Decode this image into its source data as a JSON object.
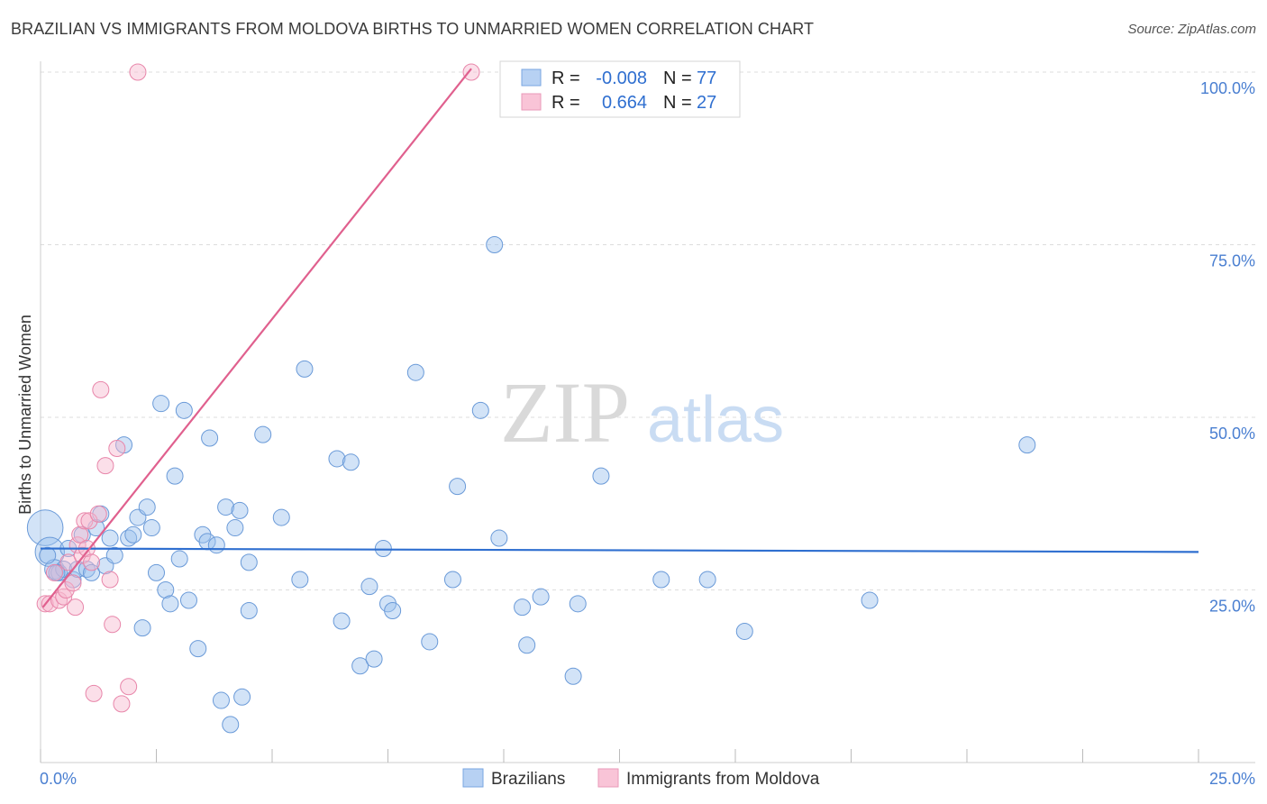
{
  "title": "BRAZILIAN VS IMMIGRANTS FROM MOLDOVA BIRTHS TO UNMARRIED WOMEN CORRELATION CHART",
  "source": "Source: ZipAtlas.com",
  "watermark": {
    "zip": "ZIP",
    "atlas": "atlas"
  },
  "chart_data": {
    "type": "scatter",
    "ylabel": "Births to Unmarried Women",
    "xlim": [
      0,
      25
    ],
    "ylim": [
      0,
      100
    ],
    "x_tick_labels": {
      "left": "0.0%",
      "right": "25.0%"
    },
    "y_ticks": [
      {
        "value": 100,
        "label": "100.0%"
      },
      {
        "value": 75,
        "label": "75.0%"
      },
      {
        "value": 50,
        "label": "50.0%"
      },
      {
        "value": 25,
        "label": "25.0%"
      }
    ],
    "legend": {
      "rows": [
        {
          "r_label": "R =",
          "r_value": "-0.008",
          "n_label": "N =",
          "n_value": "77"
        },
        {
          "r_label": "R =",
          "r_value": "0.664",
          "n_label": "N =",
          "n_value": "27"
        }
      ]
    },
    "series": [
      {
        "name": "Brazilians",
        "color": "#9cc0ee",
        "stroke": "#6a9ad8",
        "line_color": "#2f6fd0",
        "trend": {
          "x1": 0,
          "y1": 31.0,
          "x2": 25,
          "y2": 30.5
        },
        "points": [
          [
            0.1,
            34,
            2.2
          ],
          [
            0.2,
            30.5,
            1.8
          ],
          [
            0.3,
            28,
            1.2
          ],
          [
            0.4,
            27.5,
            1
          ],
          [
            0.5,
            28,
            1
          ],
          [
            0.6,
            31,
            1
          ],
          [
            0.7,
            26.5,
            1
          ],
          [
            0.8,
            28,
            1
          ],
          [
            0.9,
            33,
            1
          ],
          [
            1.0,
            28,
            1
          ],
          [
            1.1,
            27.5,
            1
          ],
          [
            1.2,
            34,
            1
          ],
          [
            1.3,
            36,
            1
          ],
          [
            1.4,
            28.5,
            1
          ],
          [
            1.5,
            32.5,
            1
          ],
          [
            1.6,
            30,
            1
          ],
          [
            1.8,
            46,
            1
          ],
          [
            1.9,
            32.5,
            1
          ],
          [
            2.0,
            33,
            1
          ],
          [
            2.1,
            35.5,
            1
          ],
          [
            2.2,
            19.5,
            1
          ],
          [
            2.3,
            37,
            1
          ],
          [
            2.4,
            34,
            1
          ],
          [
            2.5,
            27.5,
            1
          ],
          [
            2.6,
            52,
            1
          ],
          [
            2.7,
            25,
            1
          ],
          [
            2.8,
            23,
            1
          ],
          [
            2.9,
            41.5,
            1
          ],
          [
            3.0,
            29.5,
            1
          ],
          [
            3.1,
            51,
            1
          ],
          [
            3.2,
            23.5,
            1
          ],
          [
            3.4,
            16.5,
            1
          ],
          [
            3.5,
            33,
            1
          ],
          [
            3.6,
            32,
            1
          ],
          [
            3.65,
            47,
            1
          ],
          [
            3.8,
            31.5,
            1
          ],
          [
            3.9,
            9,
            1
          ],
          [
            4.0,
            37,
            1
          ],
          [
            4.1,
            5.5,
            1
          ],
          [
            4.2,
            34,
            1
          ],
          [
            4.3,
            36.5,
            1
          ],
          [
            4.35,
            9.5,
            1
          ],
          [
            4.5,
            29,
            1
          ],
          [
            4.5,
            22,
            1
          ],
          [
            4.8,
            47.5,
            1
          ],
          [
            5.2,
            35.5,
            1
          ],
          [
            5.6,
            26.5,
            1
          ],
          [
            5.7,
            57,
            1
          ],
          [
            6.4,
            44,
            1
          ],
          [
            6.5,
            20.5,
            1
          ],
          [
            6.7,
            43.5,
            1
          ],
          [
            6.9,
            14,
            1
          ],
          [
            7.1,
            25.5,
            1
          ],
          [
            7.2,
            15,
            1
          ],
          [
            7.4,
            31,
            1
          ],
          [
            7.5,
            23,
            1
          ],
          [
            7.6,
            22,
            1
          ],
          [
            8.1,
            56.5,
            1
          ],
          [
            8.4,
            17.5,
            1
          ],
          [
            8.9,
            26.5,
            1
          ],
          [
            9.0,
            40,
            1
          ],
          [
            9.5,
            51,
            1
          ],
          [
            9.8,
            75,
            1
          ],
          [
            9.9,
            32.5,
            1
          ],
          [
            10.4,
            22.5,
            1
          ],
          [
            10.5,
            17,
            1
          ],
          [
            10.8,
            24,
            1
          ],
          [
            11.5,
            12.5,
            1
          ],
          [
            11.6,
            23,
            1
          ],
          [
            12.1,
            41.5,
            1
          ],
          [
            13.4,
            26.5,
            1
          ],
          [
            14.4,
            26.5,
            1
          ],
          [
            15.2,
            19,
            1
          ],
          [
            17.9,
            23.5,
            1
          ],
          [
            21.3,
            46,
            1
          ],
          [
            0.35,
            27.5,
            1
          ],
          [
            0.15,
            30,
            1
          ]
        ]
      },
      {
        "name": "Immigrants from Moldova",
        "color": "#f7b8cf",
        "stroke": "#e886aa",
        "line_color": "#e0608e",
        "trend": {
          "x1": 0.05,
          "y1": 22.5,
          "x2": 9.3,
          "y2": 100.5
        },
        "points": [
          [
            0.1,
            23,
            1
          ],
          [
            0.2,
            23,
            1
          ],
          [
            0.3,
            27.5,
            1
          ],
          [
            0.4,
            23.5,
            1
          ],
          [
            0.5,
            24,
            1
          ],
          [
            0.55,
            25,
            1
          ],
          [
            0.6,
            29,
            1
          ],
          [
            0.7,
            26,
            1
          ],
          [
            0.75,
            22.5,
            1
          ],
          [
            0.8,
            31.5,
            1
          ],
          [
            0.85,
            33,
            1
          ],
          [
            0.9,
            30,
            1
          ],
          [
            0.95,
            35,
            1
          ],
          [
            1.0,
            31,
            1
          ],
          [
            1.05,
            35,
            1
          ],
          [
            1.1,
            29,
            1
          ],
          [
            1.15,
            10,
            1
          ],
          [
            1.25,
            36,
            1
          ],
          [
            1.3,
            54,
            1
          ],
          [
            1.4,
            43,
            1
          ],
          [
            1.5,
            26.5,
            1
          ],
          [
            1.55,
            20,
            1
          ],
          [
            1.65,
            45.5,
            1
          ],
          [
            1.75,
            8.5,
            1
          ],
          [
            1.9,
            11,
            1
          ],
          [
            2.1,
            100,
            1
          ],
          [
            9.3,
            100,
            1
          ]
        ]
      }
    ]
  }
}
